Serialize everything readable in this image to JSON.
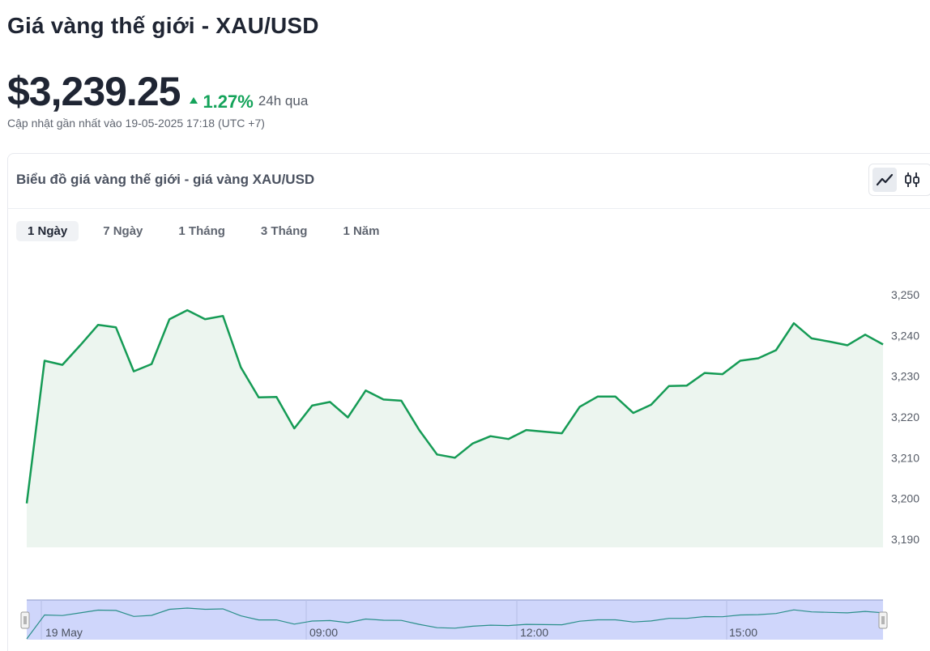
{
  "header": {
    "title": "Giá vàng thế giới - XAU/USD",
    "price": "$3,239.25",
    "change_percent": "1.27%",
    "change_period": "24h qua",
    "updated": "Cập nhật gần nhất vào 19-05-2025 17:18 (UTC +7)"
  },
  "chart_card": {
    "title": "Biểu đồ giá vàng thế giới - giá vàng XAU/USD",
    "tabs": [
      {
        "label": "1 Ngày",
        "active": true
      },
      {
        "label": "7 Ngày",
        "active": false
      },
      {
        "label": "1 Tháng",
        "active": false
      },
      {
        "label": "3 Tháng",
        "active": false
      },
      {
        "label": "1 Năm",
        "active": false
      }
    ],
    "chart_types": [
      {
        "name": "line-chart-icon",
        "active": true
      },
      {
        "name": "candlestick-icon",
        "active": false
      }
    ]
  },
  "colors": {
    "line": "#159b55",
    "area": "#ecf5ef",
    "navigator_fill": "#cfd6fb",
    "navigator_line": "#2a8f8a",
    "up": "#14a35a"
  },
  "chart_data": {
    "type": "area",
    "title": "",
    "xlabel": "",
    "ylabel": "",
    "ylim": [
      3190,
      3250
    ],
    "yticks": [
      3190,
      3200,
      3210,
      3220,
      3230,
      3240,
      3250
    ],
    "ytick_labels": [
      "3,190",
      "3,200",
      "3,210",
      "3,220",
      "3,230",
      "3,240",
      "3,250"
    ],
    "navigator_labels": [
      "19 May",
      "09:00",
      "12:00",
      "15:00"
    ],
    "grid": false,
    "values": [
      3198.8,
      3233.8,
      3232.8,
      3237.6,
      3242.6,
      3242.0,
      3231.2,
      3233.0,
      3244.0,
      3246.2,
      3244.0,
      3244.8,
      3232.2,
      3224.8,
      3224.9,
      3217.2,
      3222.8,
      3223.7,
      3219.9,
      3226.5,
      3224.3,
      3224.0,
      3216.8,
      3210.8,
      3210.0,
      3213.5,
      3215.3,
      3214.6,
      3216.8,
      3216.4,
      3216.0,
      3222.5,
      3225.0,
      3225.0,
      3221.0,
      3223.0,
      3227.6,
      3227.7,
      3230.8,
      3230.5,
      3233.8,
      3234.4,
      3236.4,
      3243.0,
      3239.3,
      3238.5,
      3237.6,
      3240.2,
      3237.8
    ]
  }
}
